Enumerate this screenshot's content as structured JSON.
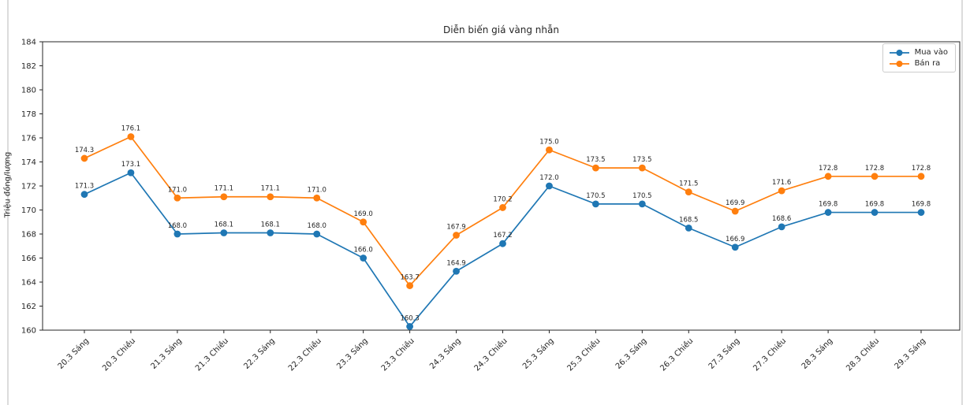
{
  "chart_data": {
    "type": "line",
    "title": "Diễn biến giá vàng nhẫn",
    "xlabel": "",
    "ylabel": "Triệu đồng/lượng",
    "ylim": [
      160,
      184
    ],
    "ytick_step": 2,
    "grid": false,
    "legend_position": "upper right",
    "value_labels": true,
    "value_label_decimals": 1,
    "categories": [
      "20.3 Sáng",
      "20.3 Chiều",
      "21.3 Sáng",
      "21.3 Chiều",
      "22.3 Sáng",
      "22.3 Chiều",
      "23.3 Sáng",
      "23.3 Chiều",
      "24.3 Sáng",
      "24.3 Chiều",
      "25.3 Sáng",
      "25.3 Chiều",
      "26.3 Sáng",
      "26.3 Chiều",
      "27.3 Sáng",
      "27.3 Chiều",
      "28.3 Sáng",
      "28.3 Chiều",
      "29.3 Sáng"
    ],
    "series": [
      {
        "name": "Mua vào",
        "color": "#1f77b4",
        "values": [
          171.3,
          173.1,
          168.0,
          168.1,
          168.1,
          168.0,
          166.0,
          160.3,
          164.9,
          167.2,
          172.0,
          170.5,
          170.5,
          168.5,
          166.9,
          168.6,
          169.8,
          169.8,
          169.8
        ]
      },
      {
        "name": "Bán ra",
        "color": "#ff7f0e",
        "values": [
          174.3,
          176.1,
          171.0,
          171.1,
          171.1,
          171.0,
          169.0,
          163.7,
          167.9,
          170.2,
          175.0,
          173.5,
          173.5,
          171.5,
          169.9,
          171.6,
          172.8,
          172.8,
          172.8
        ]
      }
    ],
    "axis_color": "#262626",
    "tick_label_color": "#262626",
    "value_label_color": "#1a1a1a"
  }
}
